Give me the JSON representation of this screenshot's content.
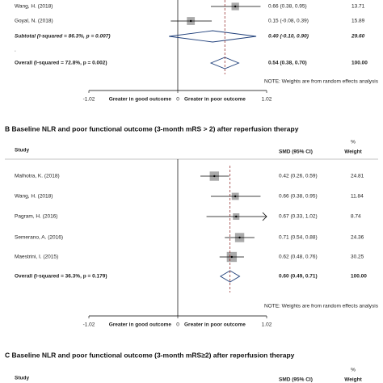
{
  "chart_data": [
    {
      "type": "forest",
      "rows": [
        {
          "label": "Wang, H. (2018)",
          "kind": "study",
          "value": 0.66,
          "low": 0.38,
          "high": 0.95,
          "value_label": "0.66 (0.38, 0.95)",
          "weight": 13.71,
          "weight_label": "13.71"
        },
        {
          "label": "Goyal, N. (2018)",
          "kind": "study",
          "value": 0.15,
          "low": -0.08,
          "high": 0.39,
          "value_label": "0.15 (-0.08, 0.39)",
          "weight": 15.89,
          "weight_label": "15.89"
        },
        {
          "label": "Subtotal  (I-squared = 86.3%, p = 0.007)",
          "kind": "subtotal",
          "value": 0.4,
          "low": -0.1,
          "high": 0.9,
          "value_label": "0.40 (-0.10, 0.90)",
          "weight": 29.6,
          "weight_label": "29.60"
        },
        {
          "label": "."
        },
        {
          "label": "Overall  (I-squared = 72.8%, p = 0.002)",
          "kind": "overall",
          "value": 0.54,
          "low": 0.38,
          "high": 0.7,
          "value_label": "0.54 (0.38, 0.70)",
          "weight": 100.0,
          "weight_label": "100.00"
        }
      ],
      "note": "NOTE: Weights are from random effects analysis",
      "xlim": [
        -1.02,
        1.02
      ],
      "xticks": [
        -1.02,
        0,
        1.02
      ],
      "x_labels": [
        "Greater in good outcome",
        "Greater in poor outcome"
      ]
    },
    {
      "type": "forest",
      "title": "B  Baseline NLR and poor functional outcome (3-month mRS > 2) after reperfusion therapy",
      "header": {
        "study": "Study",
        "estimate": "SMD (95% CI)",
        "percent": "%",
        "weight": "Weight"
      },
      "rows": [
        {
          "label": "Malhotra, K. (2018)",
          "kind": "study",
          "value": 0.42,
          "low": 0.26,
          "high": 0.59,
          "value_label": "0.42 (0.26, 0.59)",
          "weight": 24.81,
          "weight_label": "24.81"
        },
        {
          "label": "Wang, H. (2018)",
          "kind": "study",
          "value": 0.66,
          "low": 0.38,
          "high": 0.95,
          "value_label": "0.66 (0.38, 0.95)",
          "weight": 11.84,
          "weight_label": "11.84"
        },
        {
          "label": "Pagram, H. (2016)",
          "kind": "study",
          "value": 0.67,
          "low": 0.33,
          "high": 1.02,
          "value_label": "0.67 (0.33, 1.02)",
          "weight": 8.74,
          "weight_label": "8.74"
        },
        {
          "label": "Semerano, A. (2016)",
          "kind": "study",
          "value": 0.71,
          "low": 0.54,
          "high": 0.88,
          "value_label": "0.71 (0.54, 0.88)",
          "weight": 24.36,
          "weight_label": "24.36"
        },
        {
          "label": "Maestrini, I. (2015)",
          "kind": "study",
          "value": 0.62,
          "low": 0.48,
          "high": 0.76,
          "value_label": "0.62 (0.48, 0.76)",
          "weight": 30.25,
          "weight_label": "30.25"
        },
        {
          "label": "Overall  (I-squared = 36.3%, p = 0.179)",
          "kind": "overall",
          "value": 0.6,
          "low": 0.49,
          "high": 0.71,
          "value_label": "0.60 (0.49, 0.71)",
          "weight": 100.0,
          "weight_label": "100.00"
        }
      ],
      "note": "NOTE: Weights are from random effects analysis",
      "xlim": [
        -1.02,
        1.02
      ],
      "xticks": [
        -1.02,
        0,
        1.02
      ],
      "x_labels": [
        "Greater in good outcome",
        "Greater in poor outcome"
      ]
    },
    {
      "type": "forest",
      "title": "C  Baseline NLR and poor functional outcome (3-month mRS≥2) after reperfusion therapy",
      "header": {
        "study": "Study",
        "estimate": "SMD (95% CI)",
        "percent": "%",
        "weight": "Weight"
      }
    }
  ]
}
